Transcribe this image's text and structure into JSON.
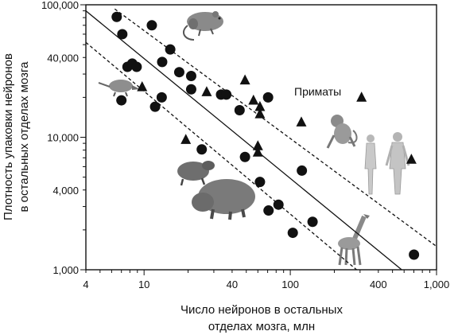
{
  "chart_data": {
    "type": "scatter",
    "x_scale": "log",
    "y_scale": "log",
    "xlim": [
      4,
      1000
    ],
    "ylim": [
      1000,
      100000
    ],
    "xlabel": [
      "Число нейронов в остальных",
      "отделах мозга, млн"
    ],
    "ylabel": [
      "Плотность упаковки нейронов",
      "в остальных отделах мозга"
    ],
    "x_ticks": [
      {
        "value": 4,
        "label": "4"
      },
      {
        "value": 10,
        "label": "10"
      },
      {
        "value": 40,
        "label": "40"
      },
      {
        "value": 100,
        "label": "100"
      },
      {
        "value": 400,
        "label": "400"
      },
      {
        "value": 1000,
        "label": "1,000"
      }
    ],
    "y_ticks": [
      {
        "value": 1000,
        "label": "1,000"
      },
      {
        "value": 4000,
        "label": "4,000"
      },
      {
        "value": 10000,
        "label": "10,000"
      },
      {
        "value": 40000,
        "label": "40,000"
      },
      {
        "value": 100000,
        "label": "100,000"
      }
    ],
    "grid": false,
    "series": [
      {
        "marker": "circle",
        "points": [
          [
            6.5,
            81000
          ],
          [
            7.1,
            60000
          ],
          [
            7.7,
            34000
          ],
          [
            8.3,
            36000
          ],
          [
            8.9,
            34000
          ],
          [
            7.0,
            19000
          ],
          [
            11.3,
            70000
          ],
          [
            13.3,
            37000
          ],
          [
            15.1,
            46000
          ],
          [
            17.4,
            31000
          ],
          [
            21.0,
            29000
          ],
          [
            21.0,
            23000
          ],
          [
            13.2,
            20000
          ],
          [
            11.9,
            17000
          ],
          [
            24.8,
            8100
          ],
          [
            33.6,
            21000
          ],
          [
            36.5,
            21000
          ],
          [
            49.0,
            7100
          ],
          [
            45.0,
            16000
          ],
          [
            70.5,
            20000
          ],
          [
            62.0,
            4600
          ],
          [
            71.0,
            2800
          ],
          [
            83.0,
            3100
          ],
          [
            104.0,
            1900
          ],
          [
            120.0,
            5600
          ],
          [
            142.0,
            2300
          ],
          [
            701.0,
            1300
          ]
        ]
      },
      {
        "marker": "triangle",
        "points": [
          [
            9.7,
            24000
          ],
          [
            19.3,
            9600
          ],
          [
            26.8,
            22000
          ],
          [
            49.0,
            27000
          ],
          [
            56.0,
            19000
          ],
          [
            62.0,
            17000
          ],
          [
            62.0,
            15000
          ],
          [
            60.0,
            8600
          ],
          [
            60.0,
            7700
          ],
          [
            119.0,
            13000
          ],
          [
            307.0,
            20000
          ],
          [
            673.0,
            6800
          ]
        ]
      }
    ],
    "lines": [
      {
        "style": "solid",
        "from": [
          4,
          90000
        ],
        "to": [
          578,
          1000
        ]
      },
      {
        "style": "dashed",
        "from": [
          6.3,
          93000
        ],
        "to": [
          1000,
          1500
        ]
      },
      {
        "style": "dashed",
        "from": [
          4,
          52000
        ],
        "to": [
          284,
          1000
        ]
      }
    ],
    "annotations": [
      {
        "text": "Приматы",
        "at": [
          175,
          23000
        ]
      }
    ],
    "illustrations": [
      "mouse",
      "shrew",
      "agouti",
      "capybara",
      "monkey",
      "human-female",
      "human-male",
      "giraffe"
    ]
  }
}
